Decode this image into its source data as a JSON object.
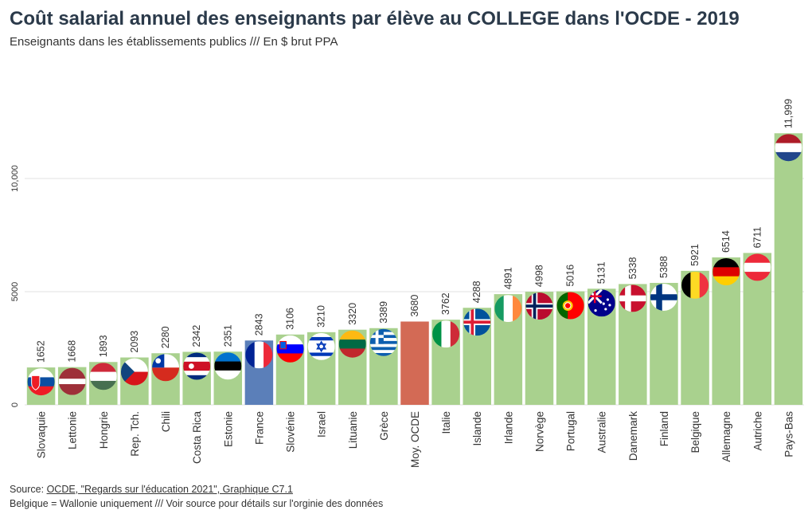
{
  "title": "Coût salarial annuel des enseignants par élève au COLLEGE dans l'OCDE - 2019",
  "subtitle": "Enseignants dans les établissements publics /// En $ brut PPA",
  "footer": {
    "source_prefix": "Source: ",
    "source_link": "OCDE, \"Regards sur l'éducation 2021\", Graphique C7.1",
    "note": "Belgique = Wallonie uniquement /// Voir source pour détails sur l'orginie des données"
  },
  "colors": {
    "default_bar": "#a9d18e",
    "france_bar": "#5b7fb9",
    "oecd_bar": "#d36a55",
    "grid": "#e2e2e2"
  },
  "chart_data": {
    "type": "bar",
    "title": "Coût salarial annuel des enseignants par élève au COLLEGE dans l'OCDE - 2019",
    "subtitle": "Enseignants dans les établissements publics /// En $ brut PPA",
    "xlabel": "",
    "ylabel": "",
    "ylim": [
      0,
      12000
    ],
    "yticks": [
      0,
      5000,
      10000
    ],
    "ytick_labels": [
      "0",
      "5000",
      "10,000"
    ],
    "grid": true,
    "categories": [
      "Slovaquie",
      "Lettonie",
      "Hongrie",
      "Rep. Tch.",
      "Chili",
      "Costa Rica",
      "Estonie",
      "France",
      "Slovénie",
      "Israel",
      "Lituanie",
      "Grèce",
      "Moy. OCDE",
      "Italie",
      "Islande",
      "Irlande",
      "Norvège",
      "Portugal",
      "Australie",
      "Danemark",
      "Finland",
      "Belgique",
      "Allemagne",
      "Autriche",
      "Pays-Bas"
    ],
    "values": [
      1652,
      1668,
      1893,
      2093,
      2280,
      2342,
      2351,
      2843,
      3106,
      3210,
      3320,
      3389,
      3680,
      3762,
      4288,
      4891,
      4998,
      5016,
      5131,
      5338,
      5388,
      5921,
      6514,
      6711,
      11999
    ],
    "data_labels": [
      "1652",
      "1668",
      "1893",
      "2093",
      "2280",
      "2342",
      "2351",
      "2843",
      "3106",
      "3210",
      "3320",
      "3389",
      "3680",
      "3762",
      "4288",
      "4891",
      "4998",
      "5016",
      "5131",
      "5338",
      "5388",
      "5921",
      "6514",
      "6711",
      "11,999"
    ],
    "flags": [
      "flag-slovakia-icon",
      "flag-latvia-icon",
      "flag-hungary-icon",
      "flag-czechia-icon",
      "flag-chile-icon",
      "flag-costa-rica-icon",
      "flag-estonia-icon",
      "flag-france-icon",
      "flag-slovenia-icon",
      "flag-israel-icon",
      "flag-lithuania-icon",
      "flag-greece-icon",
      "",
      "flag-italy-icon",
      "flag-iceland-icon",
      "flag-ireland-icon",
      "flag-norway-icon",
      "flag-portugal-icon",
      "flag-australia-icon",
      "flag-denmark-icon",
      "flag-finland-icon",
      "flag-belgium-icon",
      "flag-germany-icon",
      "flag-austria-icon",
      "flag-netherlands-icon"
    ]
  }
}
